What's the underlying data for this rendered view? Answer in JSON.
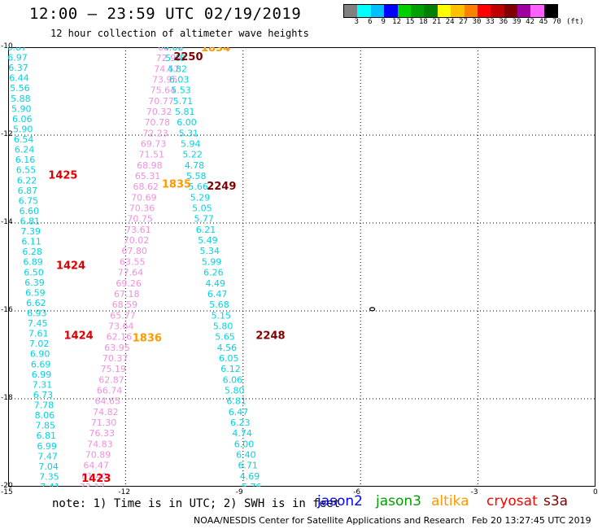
{
  "header": {
    "title": "12:00 — 23:59 UTC 02/19/2019",
    "subtitle": "12 hour collection of altimeter wave heights"
  },
  "legend": {
    "colors": [
      "#808080",
      "#00ffff",
      "#00bfff",
      "#0000ff",
      "#00d000",
      "#00a000",
      "#008000",
      "#ffff00",
      "#ffc000",
      "#ff8000",
      "#ff0000",
      "#c00000",
      "#800000",
      "#a000a0",
      "#ff60ff",
      "#000000"
    ],
    "labels": [
      "3",
      "6",
      "9",
      "12",
      "15",
      "18",
      "21",
      "24",
      "27",
      "30",
      "33",
      "36",
      "39",
      "42",
      "45",
      "70",
      "(ft)"
    ]
  },
  "map": {
    "lon_range": [
      -15,
      0
    ],
    "lat_range": [
      -20,
      -10
    ],
    "x_ticks": [
      "-15",
      "-12",
      "-9",
      "-6",
      "-3",
      "0"
    ],
    "y_ticks": [
      "-10",
      "-12",
      "-14",
      "-16",
      "-18",
      "-20"
    ],
    "colors": {
      "cyan": "#00d4e0",
      "pink": "#ee90dd",
      "red": "#dd0000",
      "darkred": "#800000",
      "orange": "#ff9900"
    },
    "pass_cyan_a": {
      "lon_start": -14.78,
      "lon_end": -13.93,
      "values": [
        "6.87",
        "6.97",
        "6.37",
        "6.44",
        "5.56",
        "5.88",
        "5.90",
        "6.06",
        "5.90",
        "6.54",
        "6.24",
        "6.16",
        "6.55",
        "6.22",
        "6.87",
        "6.75",
        "6.60",
        "6.81",
        "7.39",
        "6.11",
        "6.28",
        "6.89",
        "6.50",
        "6.39",
        "6.59",
        "6.62",
        "6.93",
        "7.45",
        "7.61",
        "7.02",
        "6.90",
        "6.69",
        "6.99",
        "7.31",
        "6.73",
        "7.78",
        "8.06",
        "7.85",
        "6.81",
        "6.99",
        "7.47",
        "7.04",
        "7.35",
        "7.41"
      ]
    },
    "pass_pink_b": {
      "lon_start": -10.85,
      "lon_end": -12.85,
      "values": [
        "68.62",
        "72.95",
        "74.57",
        "73.95",
        "75.64",
        "70.77",
        "70.32",
        "70.78",
        "72.23",
        "69.73",
        "71.51",
        "68.98",
        "65.31",
        "68.62",
        "70.69",
        "70.36",
        "70.75",
        "73.61",
        "70.02",
        "67.80",
        "63.55",
        "77.64",
        "69.26",
        "67.18",
        "68.59",
        "65.77",
        "73.64",
        "62.16",
        "63.95",
        "70.37",
        "75.19",
        "62.87",
        "66.74",
        "64.65",
        "74.82",
        "71.30",
        "76.33",
        "74.83",
        "70.89",
        "64.47",
        "61.40",
        "73.17"
      ]
    },
    "pass_cyan_c": {
      "lon_start": -10.78,
      "lon_end": -8.78,
      "values": [
        "4.66",
        "5.48",
        "4.82",
        "6.03",
        "5.53",
        "5.71",
        "5.81",
        "6.00",
        "5.31",
        "5.94",
        "5.22",
        "4.78",
        "5.58",
        "5.66",
        "5.29",
        "5.05",
        "5.77",
        "6.21",
        "5.49",
        "5.34",
        "5.99",
        "6.26",
        "4.49",
        "6.47",
        "5.68",
        "5.15",
        "5.80",
        "5.65",
        "4.56",
        "6.05",
        "6.12",
        "6.06",
        "5.80",
        "6.81",
        "6.47",
        "6.23",
        "4.74",
        "6.00",
        "6.40",
        "6.71",
        "4.69",
        "5.76"
      ]
    },
    "labels": [
      {
        "text": "1834",
        "lon": -9.7,
        "lat": -10.0,
        "color": "orange"
      },
      {
        "text": "2250",
        "lon": -10.4,
        "lat": -10.2,
        "color": "darkred"
      },
      {
        "text": "1425",
        "lon": -13.6,
        "lat": -12.9,
        "color": "red"
      },
      {
        "text": "1835",
        "lon": -10.7,
        "lat": -13.1,
        "color": "orange"
      },
      {
        "text": "2249",
        "lon": -9.55,
        "lat": -13.15,
        "color": "darkred"
      },
      {
        "text": "1424",
        "lon": -13.4,
        "lat": -14.95,
        "color": "red"
      },
      {
        "text": "1424",
        "lon": -13.2,
        "lat": -16.55,
        "color": "red"
      },
      {
        "text": "1836",
        "lon": -11.45,
        "lat": -16.6,
        "color": "orange"
      },
      {
        "text": "2248",
        "lon": -8.3,
        "lat": -16.55,
        "color": "darkred"
      },
      {
        "text": "1423",
        "lon": -12.75,
        "lat": -19.8,
        "color": "red"
      }
    ],
    "island": {
      "lon": -5.7,
      "lat": -15.96
    }
  },
  "footer": {
    "note": "note: 1) Time is in UTC; 2) SWH is in feet",
    "satellites": [
      {
        "name": "jason2",
        "color": "#0000ff"
      },
      {
        "name": "jason3",
        "color": "#00a000"
      },
      {
        "name": "altika",
        "color": "#ff9900"
      },
      {
        "name": "cryosat",
        "color": "#ff0000"
      },
      {
        "name": "s3a",
        "color": "#800000"
      }
    ],
    "credit": "NOAA/NESDIS Center for Satellite Applications and Research",
    "timestamp": "Feb 20 13:27:45 UTC 2019"
  }
}
